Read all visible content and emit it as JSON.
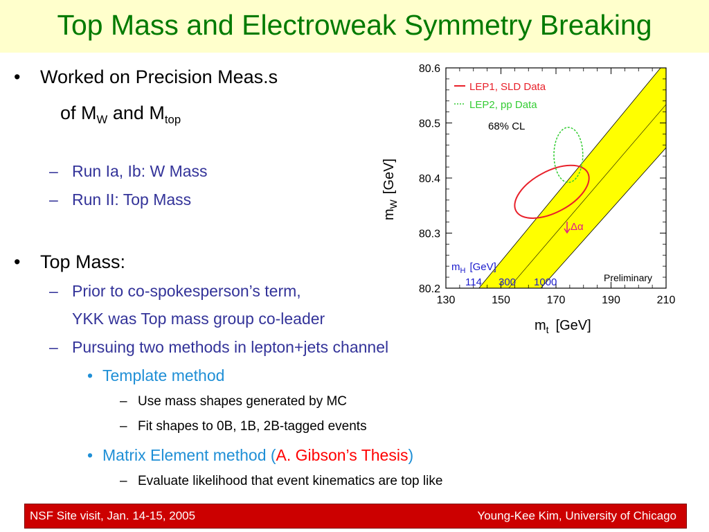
{
  "title": "Top Mass and Electroweak Symmetry Breaking",
  "bullets": {
    "b1_line1": "Worked on Precision Meas.s",
    "b1_line2_pre": "of M",
    "b1_line2_sub1": "W",
    "b1_line2_mid": " and M",
    "b1_line2_sub2": "top",
    "sub_run1": "Run Ia, Ib: W Mass",
    "sub_run2": "Run II: Top Mass",
    "b2": "Top Mass:",
    "sub_prior_line1": "Prior to co-spokesperson’s term,",
    "sub_prior_line2": "YKK was Top mass group co-leader",
    "sub_pursuing": "Pursuing two methods in lepton+jets channel",
    "template_method": "Template method",
    "template_sub1": "Use mass shapes generated by MC",
    "template_sub2": "Fit shapes to 0B, 1B, 2B-tagged events",
    "matrix_pre": "Matrix Element method (",
    "matrix_red": "A. Gibson’s Thesis",
    "matrix_post": ")",
    "matrix_sub1": "Evaluate likelihood that event kinematics are top like"
  },
  "footer": {
    "left": "NSF Site visit, Jan. 14-15, 2005",
    "right": "Young-Kee Kim, University of Chicago"
  },
  "chart_data": {
    "type": "scatter",
    "xlabel_main": "m",
    "xlabel_sub": "t",
    "xlabel_unit": "[GeV]",
    "ylabel_main": "m",
    "ylabel_sub": "W",
    "ylabel_unit": "[GeV]",
    "xlim": [
      130,
      210
    ],
    "ylim": [
      80.2,
      80.6
    ],
    "x_ticks": [
      "130",
      "150",
      "170",
      "190",
      "210"
    ],
    "y_ticks": [
      "80.2",
      "80.3",
      "80.4",
      "80.5",
      "80.6"
    ],
    "legend": [
      "LEP1, SLD Data",
      "LEP2, pp Data"
    ],
    "cl_label": "68% CL",
    "preliminary": "Preliminary",
    "delta_alpha": "Δα",
    "mh_label_main": "m",
    "mh_label_sub": "H",
    "mh_label_unit": "[GeV]",
    "mh_values": [
      "114",
      "300",
      "1000"
    ],
    "colors": {
      "lep1": "#e8202a",
      "lep2": "#33cc33",
      "band": "#ffff00",
      "mh": "#1a1acc",
      "delta": "#e0148c",
      "title": "#007a00",
      "footer": "#cc0000"
    },
    "lep1_ellipse": {
      "center": [
        168.5,
        80.375
      ],
      "mt_range": [
        155.5,
        182.0
      ],
      "mw_range": [
        80.33,
        80.42
      ]
    },
    "lep2_ellipse": {
      "center": [
        174.5,
        80.442
      ],
      "mt_range": [
        169.5,
        180.0
      ],
      "mw_range": [
        80.39,
        80.49
      ]
    },
    "sm_band": {
      "mh114_upper": [
        [
          142.0,
          80.2
        ],
        [
          208.0,
          80.6
        ]
      ],
      "mh1000_lower": [
        [
          164.5,
          80.2
        ],
        [
          210.0,
          80.455
        ]
      ]
    }
  }
}
